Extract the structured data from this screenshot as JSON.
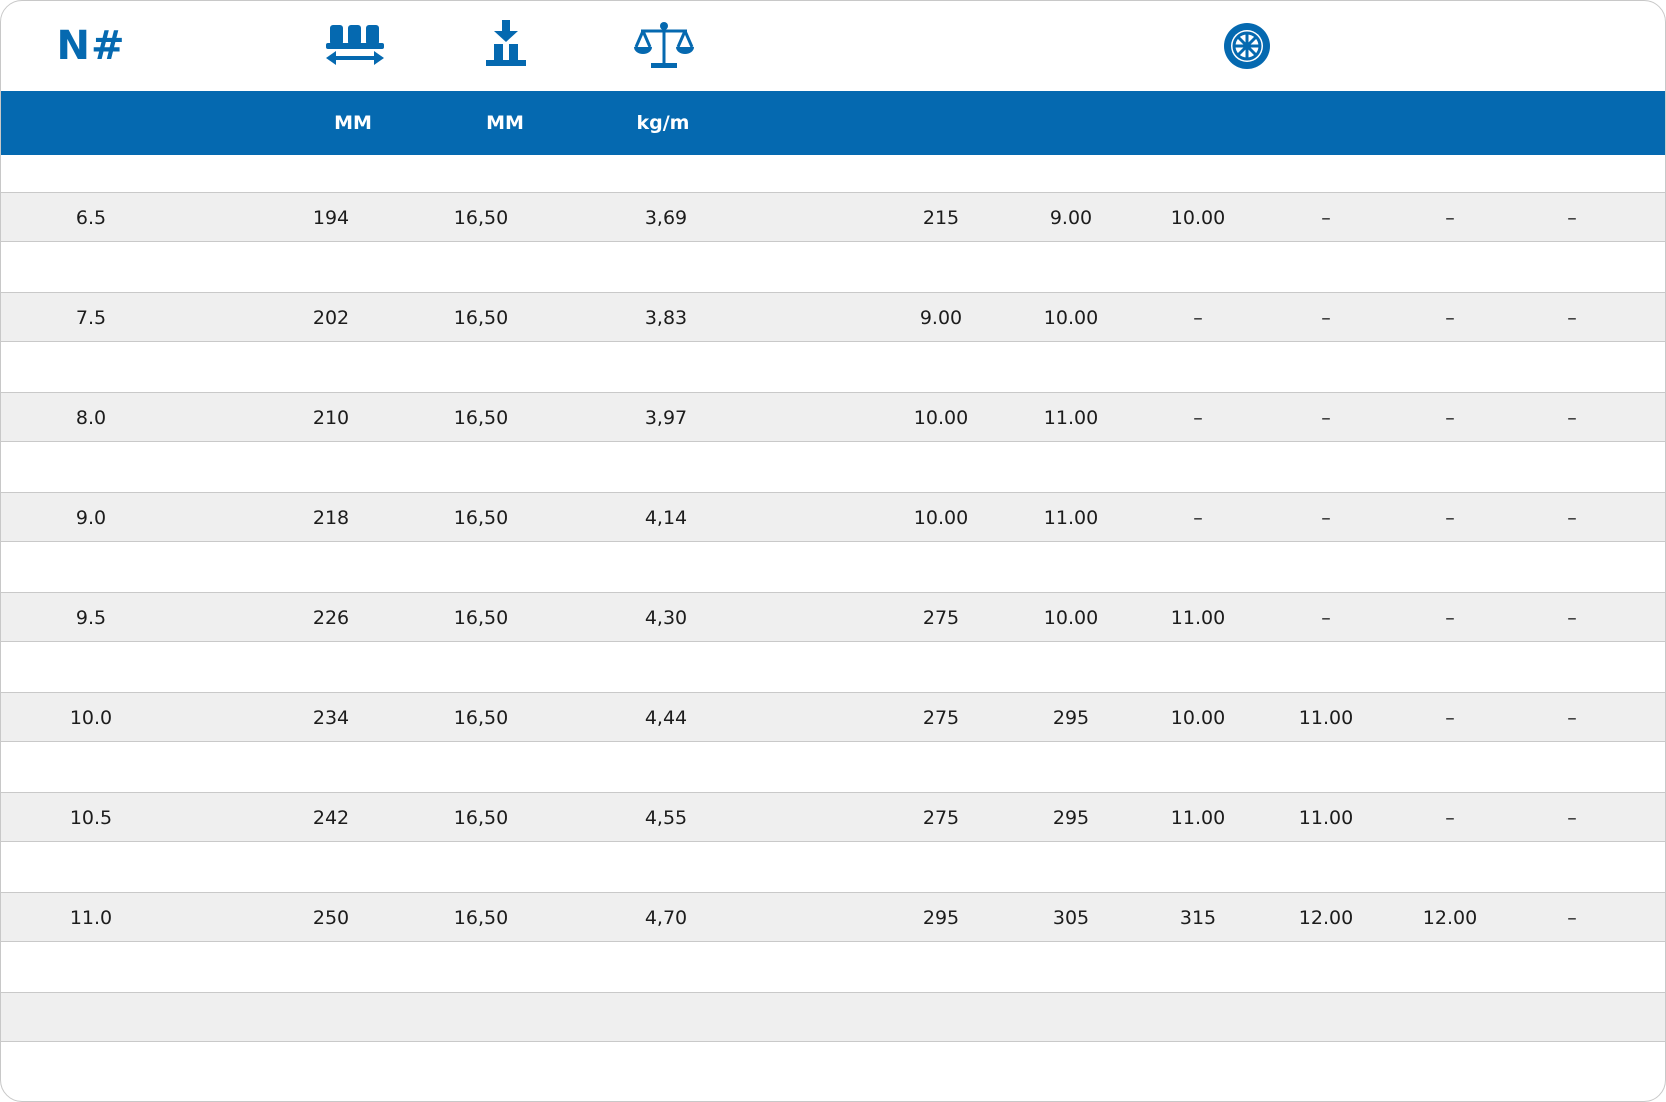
{
  "header": {
    "number_symbol": "N#",
    "icons": [
      "width-icon",
      "thickness-icon",
      "weight-scale-icon",
      "wheel-icon"
    ],
    "units": [
      "MM",
      "MM",
      "kg/m"
    ]
  },
  "colors": {
    "accent": "#0569b0",
    "row_shade": "#efefef"
  },
  "rows": [
    [
      "6.5",
      "194",
      "16,50",
      "3,69",
      "215",
      "9.00",
      "10.00",
      "–",
      "–",
      "–"
    ],
    [
      "7.5",
      "202",
      "16,50",
      "3,83",
      "9.00",
      "10.00",
      "–",
      "–",
      "–",
      "–"
    ],
    [
      "8.0",
      "210",
      "16,50",
      "3,97",
      "10.00",
      "11.00",
      "–",
      "–",
      "–",
      "–"
    ],
    [
      "9.0",
      "218",
      "16,50",
      "4,14",
      "10.00",
      "11.00",
      "–",
      "–",
      "–",
      "–"
    ],
    [
      "9.5",
      "226",
      "16,50",
      "4,30",
      "275",
      "10.00",
      "11.00",
      "–",
      "–",
      "–"
    ],
    [
      "10.0",
      "234",
      "16,50",
      "4,44",
      "275",
      "295",
      "10.00",
      "11.00",
      "–",
      "–"
    ],
    [
      "10.5",
      "242",
      "16,50",
      "4,55",
      "275",
      "295",
      "11.00",
      "11.00",
      "–",
      "–"
    ],
    [
      "11.0",
      "250",
      "16,50",
      "4,70",
      "295",
      "305",
      "315",
      "12.00",
      "12.00",
      "–"
    ]
  ]
}
